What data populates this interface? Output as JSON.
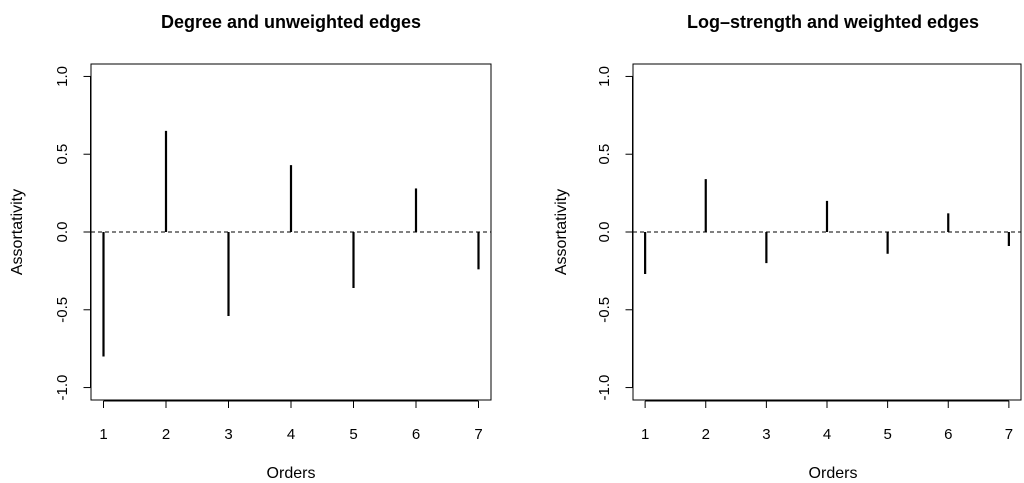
{
  "chart_data": [
    {
      "type": "bar",
      "title": "Degree and unweighted edges",
      "xlabel": "Orders",
      "ylabel": "Assortativity",
      "x": [
        1,
        2,
        3,
        4,
        5,
        6,
        7
      ],
      "values": [
        -0.8,
        0.65,
        -0.54,
        0.43,
        -0.36,
        0.28,
        -0.24
      ],
      "xlim": [
        0.8,
        7.2
      ],
      "ylim": [
        -1.08,
        1.08
      ],
      "xticks": [
        1,
        2,
        3,
        4,
        5,
        6,
        7
      ],
      "xtick_labels": [
        "1",
        "2",
        "3",
        "4",
        "5",
        "6",
        "7"
      ],
      "yticks": [
        -1.0,
        -0.5,
        0.0,
        0.5,
        1.0
      ],
      "ytick_labels": [
        "-1.0",
        "-0.5",
        "0.0",
        "0.5",
        "1.0"
      ],
      "reference_line": {
        "y": 0,
        "style": "dashed"
      },
      "grid": false,
      "legend": "none"
    },
    {
      "type": "bar",
      "title": "Log–strength and weighted edges",
      "xlabel": "Orders",
      "ylabel": "Assortativity",
      "x": [
        1,
        2,
        3,
        4,
        5,
        6,
        7
      ],
      "values": [
        -0.27,
        0.34,
        -0.2,
        0.2,
        -0.14,
        0.12,
        -0.09
      ],
      "xlim": [
        0.8,
        7.2
      ],
      "ylim": [
        -1.08,
        1.08
      ],
      "xticks": [
        1,
        2,
        3,
        4,
        5,
        6,
        7
      ],
      "xtick_labels": [
        "1",
        "2",
        "3",
        "4",
        "5",
        "6",
        "7"
      ],
      "yticks": [
        -1.0,
        -0.5,
        0.0,
        0.5,
        1.0
      ],
      "ytick_labels": [
        "-1.0",
        "-0.5",
        "0.0",
        "0.5",
        "1.0"
      ],
      "reference_line": {
        "y": 0,
        "style": "dashed"
      },
      "grid": false,
      "legend": "none"
    }
  ]
}
